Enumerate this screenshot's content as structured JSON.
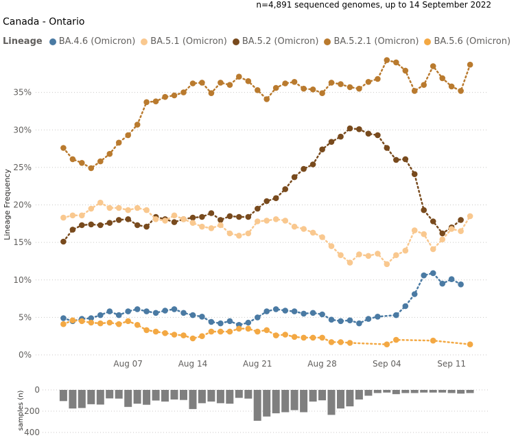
{
  "header": {
    "subtitle": "n=4,891 sequenced genomes, up to 14 September 2022",
    "title": "Canada - Ontario"
  },
  "legend": {
    "title": "Lineage",
    "items": [
      {
        "label": "BA.4.6 (Omicron)",
        "color": "#4a7aa3"
      },
      {
        "label": "BA.5.1 (Omicron)",
        "color": "#f9c88f"
      },
      {
        "label": "BA.5.2 (Omicron)",
        "color": "#784a1d"
      },
      {
        "label": "BA.5.2.1 (Omicron)",
        "color": "#b97a2e"
      },
      {
        "label": "BA.5.6 (Omicron)",
        "color": "#f3a843"
      }
    ]
  },
  "chart_data": [
    {
      "type": "line",
      "title": "Canada - Ontario",
      "ylabel": "Lineage Frequency",
      "xlabel": "",
      "ylim": [
        0,
        40
      ],
      "yticks": [
        0,
        5,
        10,
        15,
        20,
        25,
        30,
        35
      ],
      "ytick_labels": [
        "0%",
        "5%",
        "10%",
        "15%",
        "20%",
        "25%",
        "30%",
        "35%"
      ],
      "x_range": [
        -3,
        46
      ],
      "xticks": [
        {
          "day": 7,
          "label": "Aug 07"
        },
        {
          "day": 14,
          "label": "Aug 14"
        },
        {
          "day": 21,
          "label": "Aug 21"
        },
        {
          "day": 28,
          "label": "Aug 28"
        },
        {
          "day": 35,
          "label": "Sep 04"
        },
        {
          "day": 42,
          "label": "Sep 11"
        }
      ],
      "series": [
        {
          "name": "BA.5.2.1 (Omicron)",
          "color": "#b97a2e",
          "points": [
            [
              0,
              27.6
            ],
            [
              1,
              26.1
            ],
            [
              2,
              25.6
            ],
            [
              3,
              24.9
            ],
            [
              4,
              25.8
            ],
            [
              5,
              26.8
            ],
            [
              6,
              28.3
            ],
            [
              7,
              29.3
            ],
            [
              8,
              30.7
            ],
            [
              9,
              33.7
            ],
            [
              10,
              33.8
            ],
            [
              11,
              34.4
            ],
            [
              12,
              34.6
            ],
            [
              13,
              35.0
            ],
            [
              14,
              36.2
            ],
            [
              15,
              36.3
            ],
            [
              16,
              34.9
            ],
            [
              17,
              36.3
            ],
            [
              18,
              36.0
            ],
            [
              19,
              37.1
            ],
            [
              20,
              36.5
            ],
            [
              21,
              35.3
            ],
            [
              22,
              34.1
            ],
            [
              23,
              35.6
            ],
            [
              24,
              36.2
            ],
            [
              25,
              36.4
            ],
            [
              26,
              35.5
            ],
            [
              27,
              35.4
            ],
            [
              28,
              34.9
            ],
            [
              29,
              36.3
            ],
            [
              30,
              36.1
            ],
            [
              31,
              35.7
            ],
            [
              32,
              35.5
            ],
            [
              33,
              36.4
            ],
            [
              34,
              36.8
            ],
            [
              35,
              39.3
            ],
            [
              36,
              39.0
            ],
            [
              37,
              37.9
            ],
            [
              38,
              35.2
            ],
            [
              39,
              36.0
            ],
            [
              40,
              38.5
            ],
            [
              41,
              36.9
            ],
            [
              42,
              35.8
            ],
            [
              43,
              35.2
            ],
            [
              44,
              38.7
            ]
          ]
        },
        {
          "name": "BA.5.2 (Omicron)",
          "color": "#784a1d",
          "points": [
            [
              0,
              15.1
            ],
            [
              1,
              16.7
            ],
            [
              2,
              17.3
            ],
            [
              3,
              17.4
            ],
            [
              4,
              17.3
            ],
            [
              5,
              17.6
            ],
            [
              6,
              18.0
            ],
            [
              7,
              18.1
            ],
            [
              8,
              17.3
            ],
            [
              9,
              17.1
            ],
            [
              10,
              18.4
            ],
            [
              11,
              18.1
            ],
            [
              12,
              17.7
            ],
            [
              13,
              18.1
            ],
            [
              14,
              18.3
            ],
            [
              15,
              18.4
            ],
            [
              16,
              18.9
            ],
            [
              17,
              18.0
            ],
            [
              18,
              18.5
            ],
            [
              19,
              18.4
            ],
            [
              20,
              18.4
            ],
            [
              21,
              19.5
            ],
            [
              22,
              20.5
            ],
            [
              23,
              20.9
            ],
            [
              24,
              22.1
            ],
            [
              25,
              23.7
            ],
            [
              26,
              24.8
            ],
            [
              27,
              25.4
            ],
            [
              28,
              27.4
            ],
            [
              29,
              28.4
            ],
            [
              30,
              29.1
            ],
            [
              31,
              30.2
            ],
            [
              32,
              30.1
            ],
            [
              33,
              29.5
            ],
            [
              34,
              29.3
            ],
            [
              35,
              27.6
            ],
            [
              36,
              26.0
            ],
            [
              37,
              26.1
            ],
            [
              38,
              24.1
            ],
            [
              39,
              19.3
            ],
            [
              40,
              17.8
            ],
            [
              41,
              16.2
            ],
            [
              42,
              17.0
            ],
            [
              43,
              18.0
            ]
          ]
        },
        {
          "name": "BA.5.1 (Omicron)",
          "color": "#f9c88f",
          "points": [
            [
              0,
              18.3
            ],
            [
              1,
              18.6
            ],
            [
              2,
              18.6
            ],
            [
              3,
              19.5
            ],
            [
              4,
              20.3
            ],
            [
              5,
              19.6
            ],
            [
              6,
              19.6
            ],
            [
              7,
              19.3
            ],
            [
              8,
              19.6
            ],
            [
              9,
              19.3
            ],
            [
              10,
              18.1
            ],
            [
              11,
              17.9
            ],
            [
              12,
              18.6
            ],
            [
              13,
              18.1
            ],
            [
              14,
              17.6
            ],
            [
              15,
              17.1
            ],
            [
              16,
              16.9
            ],
            [
              17,
              17.3
            ],
            [
              18,
              16.2
            ],
            [
              19,
              15.9
            ],
            [
              20,
              16.2
            ],
            [
              21,
              17.8
            ],
            [
              22,
              17.9
            ],
            [
              23,
              18.1
            ],
            [
              24,
              17.9
            ],
            [
              25,
              17.1
            ],
            [
              26,
              16.8
            ],
            [
              27,
              16.3
            ],
            [
              28,
              15.7
            ],
            [
              29,
              14.5
            ],
            [
              30,
              13.3
            ],
            [
              31,
              12.3
            ],
            [
              32,
              13.4
            ],
            [
              33,
              13.2
            ],
            [
              34,
              13.5
            ],
            [
              35,
              12.1
            ],
            [
              36,
              13.3
            ],
            [
              37,
              13.9
            ],
            [
              38,
              16.6
            ],
            [
              39,
              16.1
            ],
            [
              40,
              14.1
            ],
            [
              41,
              15.4
            ],
            [
              42,
              16.8
            ],
            [
              43,
              16.5
            ],
            [
              44,
              18.5
            ]
          ]
        },
        {
          "name": "BA.4.6 (Omicron)",
          "color": "#4a7aa3",
          "points": [
            [
              0,
              4.9
            ],
            [
              1,
              4.5
            ],
            [
              2,
              4.8
            ],
            [
              3,
              4.9
            ],
            [
              4,
              5.3
            ],
            [
              5,
              5.8
            ],
            [
              6,
              5.3
            ],
            [
              7,
              5.8
            ],
            [
              8,
              6.1
            ],
            [
              9,
              5.8
            ],
            [
              10,
              5.6
            ],
            [
              11,
              5.9
            ],
            [
              12,
              6.1
            ],
            [
              13,
              5.6
            ],
            [
              14,
              5.3
            ],
            [
              15,
              5.1
            ],
            [
              16,
              4.4
            ],
            [
              17,
              4.2
            ],
            [
              18,
              4.5
            ],
            [
              19,
              4.0
            ],
            [
              20,
              4.3
            ],
            [
              21,
              5.0
            ],
            [
              22,
              5.8
            ],
            [
              23,
              6.1
            ],
            [
              24,
              5.9
            ],
            [
              25,
              5.8
            ],
            [
              26,
              5.5
            ],
            [
              27,
              5.6
            ],
            [
              28,
              5.4
            ],
            [
              29,
              4.7
            ],
            [
              30,
              4.5
            ],
            [
              31,
              4.6
            ],
            [
              32,
              4.2
            ],
            [
              33,
              4.8
            ],
            [
              34,
              5.1
            ],
            [
              36,
              5.3
            ],
            [
              37,
              6.5
            ],
            [
              38,
              8.1
            ],
            [
              39,
              10.6
            ],
            [
              40,
              10.9
            ],
            [
              41,
              9.5
            ],
            [
              42,
              10.1
            ],
            [
              43,
              9.4
            ]
          ]
        },
        {
          "name": "BA.5.6 (Omicron)",
          "color": "#f3a843",
          "points": [
            [
              0,
              4.1
            ],
            [
              1,
              4.6
            ],
            [
              2,
              4.5
            ],
            [
              3,
              4.3
            ],
            [
              4,
              4.2
            ],
            [
              5,
              4.3
            ],
            [
              6,
              4.1
            ],
            [
              7,
              4.5
            ],
            [
              8,
              4.0
            ],
            [
              9,
              3.3
            ],
            [
              10,
              3.1
            ],
            [
              11,
              2.9
            ],
            [
              12,
              2.7
            ],
            [
              13,
              2.6
            ],
            [
              14,
              2.2
            ],
            [
              15,
              2.5
            ],
            [
              16,
              3.1
            ],
            [
              17,
              3.1
            ],
            [
              18,
              3.1
            ],
            [
              19,
              3.5
            ],
            [
              20,
              3.5
            ],
            [
              21,
              3.1
            ],
            [
              22,
              3.3
            ],
            [
              23,
              2.6
            ],
            [
              24,
              2.7
            ],
            [
              25,
              2.4
            ],
            [
              26,
              2.3
            ],
            [
              27,
              2.3
            ],
            [
              28,
              2.3
            ],
            [
              29,
              1.7
            ],
            [
              30,
              1.7
            ],
            [
              31,
              1.6
            ],
            [
              35,
              1.4
            ],
            [
              36,
              2.0
            ],
            [
              40,
              1.9
            ],
            [
              44,
              1.4
            ]
          ]
        }
      ]
    },
    {
      "type": "bar",
      "ylabel": "samples (n)",
      "ylim": [
        0,
        400
      ],
      "yticks": [
        0,
        200,
        400
      ],
      "ytick_labels": [
        "0",
        "200",
        "400"
      ],
      "orientation": "downward",
      "x": [
        0,
        1,
        2,
        3,
        4,
        5,
        6,
        7,
        8,
        9,
        10,
        11,
        12,
        13,
        14,
        15,
        16,
        17,
        18,
        19,
        20,
        21,
        22,
        23,
        24,
        25,
        26,
        27,
        28,
        29,
        30,
        31,
        32,
        33,
        34,
        35,
        36,
        37,
        38,
        39,
        40,
        41,
        42,
        43,
        44
      ],
      "values": [
        105,
        175,
        170,
        135,
        138,
        80,
        82,
        160,
        130,
        140,
        100,
        110,
        90,
        95,
        180,
        125,
        110,
        125,
        130,
        75,
        82,
        290,
        250,
        220,
        210,
        190,
        210,
        110,
        98,
        235,
        175,
        155,
        90,
        55,
        30,
        25,
        40,
        30,
        30,
        25,
        25,
        25,
        30,
        35,
        30
      ]
    }
  ]
}
